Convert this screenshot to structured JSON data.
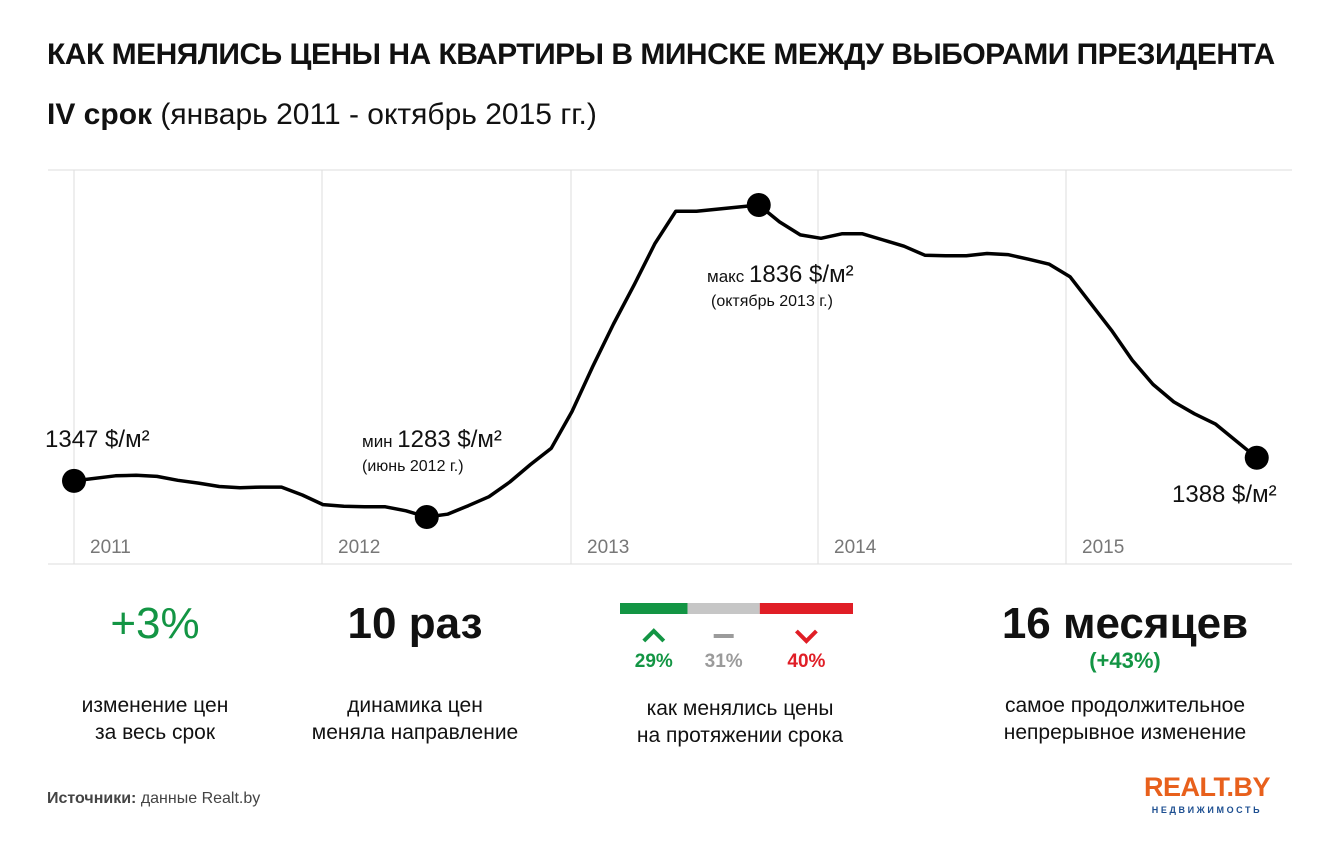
{
  "title": "КАК МЕНЯЛИСЬ ЦЕНЫ НА КВАРТИРЫ В МИНСКЕ МЕЖДУ ВЫБОРАМИ ПРЕЗИДЕНТА",
  "subtitle_bold": "IV срок",
  "subtitle_rest": "(январь 2011 - октябрь 2015 гг.)",
  "chart_data": {
    "type": "line",
    "unit": "$/м²",
    "x_ticks": [
      "2011",
      "2012",
      "2013",
      "2014",
      "2015"
    ],
    "x_range": [
      "2011-01",
      "2015-12"
    ],
    "ylim": [
      1200,
      1900
    ],
    "grid": "vertical",
    "series": [
      {
        "points": [
          {
            "x": "2011-01",
            "y": 1347
          },
          {
            "x": "2011-03",
            "y": 1356
          },
          {
            "x": "2011-04",
            "y": 1357
          },
          {
            "x": "2011-05",
            "y": 1355
          },
          {
            "x": "2011-06",
            "y": 1348
          },
          {
            "x": "2011-07",
            "y": 1343
          },
          {
            "x": "2011-08",
            "y": 1337
          },
          {
            "x": "2011-09",
            "y": 1335
          },
          {
            "x": "2011-10",
            "y": 1336
          },
          {
            "x": "2011-11",
            "y": 1336
          },
          {
            "x": "2011-12",
            "y": 1322
          },
          {
            "x": "2012-01",
            "y": 1305
          },
          {
            "x": "2012-02",
            "y": 1302
          },
          {
            "x": "2012-03",
            "y": 1301
          },
          {
            "x": "2012-04",
            "y": 1301
          },
          {
            "x": "2012-05",
            "y": 1294
          },
          {
            "x": "2012-06",
            "y": 1283
          },
          {
            "x": "2012-07",
            "y": 1288
          },
          {
            "x": "2012-08",
            "y": 1303
          },
          {
            "x": "2012-09",
            "y": 1319
          },
          {
            "x": "2012-10",
            "y": 1345
          },
          {
            "x": "2012-11",
            "y": 1376
          },
          {
            "x": "2012-12",
            "y": 1405
          },
          {
            "x": "2013-01",
            "y": 1470
          },
          {
            "x": "2013-02",
            "y": 1550
          },
          {
            "x": "2013-03",
            "y": 1625
          },
          {
            "x": "2013-04",
            "y": 1695
          },
          {
            "x": "2013-05",
            "y": 1768
          },
          {
            "x": "2013-06",
            "y": 1825
          },
          {
            "x": "2013-07",
            "y": 1825
          },
          {
            "x": "2013-10",
            "y": 1836
          },
          {
            "x": "2013-11",
            "y": 1806
          },
          {
            "x": "2013-12",
            "y": 1783
          },
          {
            "x": "2014-01",
            "y": 1777
          },
          {
            "x": "2014-02",
            "y": 1785
          },
          {
            "x": "2014-03",
            "y": 1785
          },
          {
            "x": "2014-04",
            "y": 1774
          },
          {
            "x": "2014-05",
            "y": 1763
          },
          {
            "x": "2014-06",
            "y": 1747
          },
          {
            "x": "2014-07",
            "y": 1746
          },
          {
            "x": "2014-08",
            "y": 1746
          },
          {
            "x": "2014-09",
            "y": 1750
          },
          {
            "x": "2014-10",
            "y": 1748
          },
          {
            "x": "2014-11",
            "y": 1740
          },
          {
            "x": "2014-12",
            "y": 1731
          },
          {
            "x": "2015-01",
            "y": 1709
          },
          {
            "x": "2015-03",
            "y": 1614
          },
          {
            "x": "2015-04",
            "y": 1561
          },
          {
            "x": "2015-05",
            "y": 1518
          },
          {
            "x": "2015-06",
            "y": 1487
          },
          {
            "x": "2015-07",
            "y": 1466
          },
          {
            "x": "2015-08",
            "y": 1448
          },
          {
            "x": "2015-10",
            "y": 1388
          }
        ]
      }
    ],
    "annotations": [
      {
        "x": "2011-01",
        "y": 1347,
        "text": "1347 $/м²",
        "position": "above"
      },
      {
        "x": "2012-06",
        "y": 1283,
        "prefix": "мин",
        "text": "1283 $/м²",
        "note": "(июнь 2012 г.)",
        "position": "above"
      },
      {
        "x": "2013-10",
        "y": 1836,
        "prefix": "макс",
        "text": "1836 $/м²",
        "note": "(октябрь 2013 г.)",
        "position": "below"
      },
      {
        "x": "2015-10",
        "y": 1388,
        "text": "1388 $/м²",
        "position": "below"
      }
    ]
  },
  "stats": {
    "change": {
      "value": "+3%",
      "line1": "изменение цен",
      "line2": "за весь срок"
    },
    "reversals": {
      "value": "10 раз",
      "line1": "динамика цен",
      "line2": "меняла направление"
    },
    "breakdown": {
      "up": {
        "pct": 29,
        "label": "29%",
        "color": "#139544"
      },
      "flat": {
        "pct": 31,
        "label": "31%",
        "color": "#c6c6c6"
      },
      "down": {
        "pct": 40,
        "label": "40%",
        "color": "#e01e26"
      },
      "line1": "как менялись цены",
      "line2": "на протяжении срока"
    },
    "longest": {
      "value": "16 месяцев",
      "sub": "(+43%)",
      "line1": "самое продолжительное",
      "line2": "непрерывное изменение"
    }
  },
  "source": {
    "label": "Источники:",
    "text": "данные Realt.by"
  },
  "logo": {
    "main": "REALT.BY",
    "sub": "НЕДВИЖИМОСТЬ"
  }
}
